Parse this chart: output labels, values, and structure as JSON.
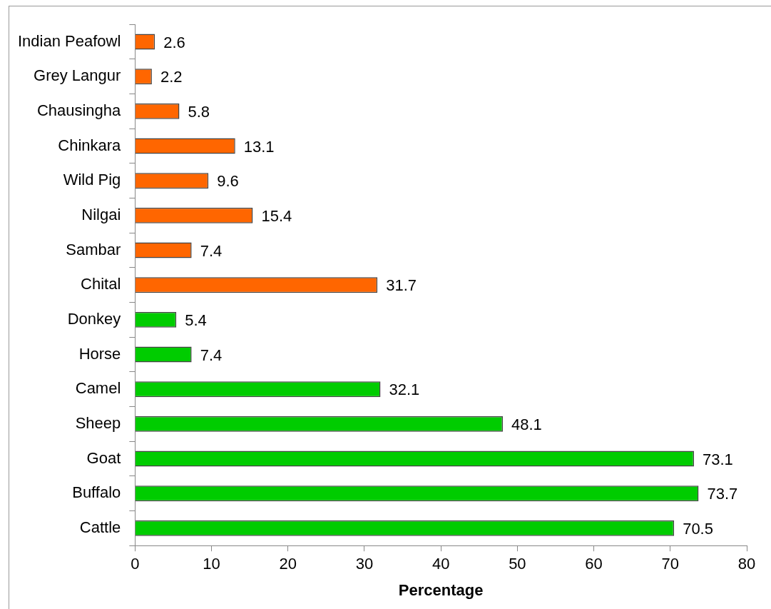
{
  "chart_data": {
    "type": "bar",
    "orientation": "horizontal",
    "xlabel": "Percentage",
    "categories": [
      "Indian Peafowl",
      "Grey Langur",
      "Chausingha",
      "Chinkara",
      "Wild Pig",
      "Nilgai",
      "Sambar",
      "Chital",
      "Donkey",
      "Horse",
      "Camel",
      "Sheep",
      "Goat",
      "Buffalo",
      "Cattle"
    ],
    "values": [
      2.6,
      2.2,
      5.8,
      13.1,
      9.6,
      15.4,
      7.4,
      31.7,
      5.4,
      7.4,
      32.1,
      48.1,
      73.1,
      73.7,
      70.5
    ],
    "colors": [
      "#ff6600",
      "#ff6600",
      "#ff6600",
      "#ff6600",
      "#ff6600",
      "#ff6600",
      "#ff6600",
      "#ff6600",
      "#00cc00",
      "#00cc00",
      "#00cc00",
      "#00cc00",
      "#00cc00",
      "#00cc00",
      "#00cc00"
    ],
    "xlim": [
      0,
      80
    ],
    "xticks": [
      0,
      10,
      20,
      30,
      40,
      50,
      60,
      70,
      80
    ],
    "grid": false,
    "legend": false,
    "data_labels": true
  }
}
